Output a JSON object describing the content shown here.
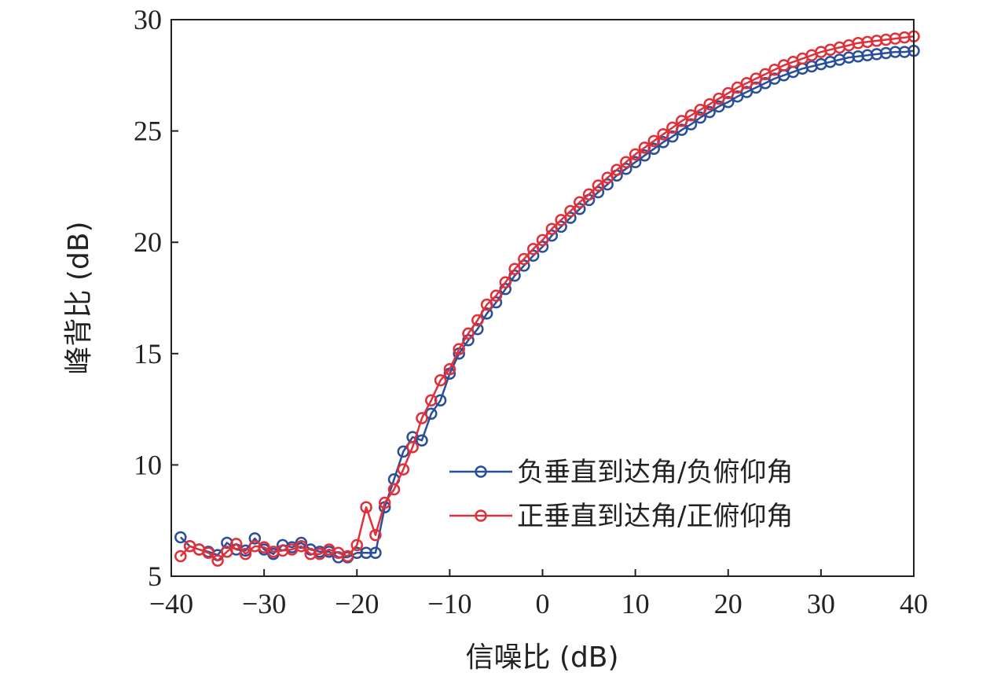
{
  "chart_data": {
    "type": "line",
    "xlabel": "信噪比 (dB)",
    "ylabel": "峰背比 (dB)",
    "xlim": [
      -40,
      40
    ],
    "ylim": [
      5,
      30
    ],
    "xticks": [
      -40,
      -30,
      -20,
      -10,
      0,
      10,
      20,
      30,
      40
    ],
    "yticks": [
      5,
      10,
      15,
      20,
      25,
      30
    ],
    "xtick_labels": [
      "−40",
      "−30",
      "−20",
      "−10",
      "0",
      "10",
      "20",
      "30",
      "40"
    ],
    "ytick_labels": [
      "5",
      "10",
      "15",
      "20",
      "25",
      "30"
    ],
    "grid": false,
    "legend_position": "lower-right",
    "x": [
      -39,
      -38,
      -37,
      -36,
      -35,
      -34,
      -33,
      -32,
      -31,
      -30,
      -29,
      -28,
      -27,
      -26,
      -25,
      -24,
      -23,
      -22,
      -21,
      -20,
      -19,
      -18,
      -17,
      -16,
      -15,
      -14,
      -13,
      -12,
      -11,
      -10,
      -9,
      -8,
      -7,
      -6,
      -5,
      -4,
      -3,
      -2,
      -1,
      0,
      1,
      2,
      3,
      4,
      5,
      6,
      7,
      8,
      9,
      10,
      11,
      12,
      13,
      14,
      15,
      16,
      17,
      18,
      19,
      20,
      21,
      22,
      23,
      24,
      25,
      26,
      27,
      28,
      29,
      30,
      31,
      32,
      33,
      34,
      35,
      36,
      37,
      38,
      39,
      40
    ],
    "series": [
      {
        "name": "负垂直到达角/负俯仰角",
        "color": "#2a4f9a",
        "values": [
          6.75,
          6.35,
          6.2,
          6.1,
          5.95,
          6.5,
          6.2,
          6.15,
          6.7,
          6.2,
          6.0,
          6.4,
          6.3,
          6.5,
          6.2,
          6.1,
          6.1,
          5.85,
          5.85,
          6.05,
          6.05,
          6.05,
          8.1,
          9.35,
          10.6,
          11.25,
          11.1,
          12.3,
          12.9,
          14.1,
          15.0,
          15.6,
          16.1,
          16.8,
          17.3,
          17.9,
          18.5,
          18.95,
          19.4,
          19.8,
          20.3,
          20.7,
          21.1,
          21.5,
          21.9,
          22.25,
          22.6,
          23.0,
          23.3,
          23.6,
          23.9,
          24.2,
          24.5,
          24.75,
          25.05,
          25.3,
          25.6,
          25.85,
          26.1,
          26.3,
          26.55,
          26.75,
          26.95,
          27.15,
          27.35,
          27.5,
          27.65,
          27.8,
          27.9,
          28.0,
          28.1,
          28.2,
          28.3,
          28.35,
          28.4,
          28.45,
          28.5,
          28.55,
          28.55,
          28.6
        ]
      },
      {
        "name": "正垂直到达角/正俯仰角",
        "color": "#e0303a",
        "values": [
          5.9,
          6.35,
          6.2,
          6.05,
          5.7,
          6.1,
          6.45,
          6.0,
          6.35,
          6.3,
          6.1,
          6.15,
          6.2,
          6.35,
          6.0,
          6.0,
          6.2,
          6.05,
          5.9,
          6.4,
          8.1,
          6.85,
          8.3,
          8.9,
          9.8,
          10.8,
          12.1,
          12.9,
          13.8,
          14.3,
          15.2,
          15.9,
          16.5,
          17.2,
          17.6,
          18.2,
          18.8,
          19.25,
          19.7,
          20.1,
          20.6,
          21.0,
          21.4,
          21.8,
          22.15,
          22.55,
          22.9,
          23.25,
          23.6,
          23.95,
          24.25,
          24.55,
          24.85,
          25.15,
          25.45,
          25.7,
          25.95,
          26.2,
          26.45,
          26.7,
          26.95,
          27.15,
          27.35,
          27.55,
          27.75,
          27.95,
          28.1,
          28.25,
          28.4,
          28.55,
          28.65,
          28.75,
          28.85,
          28.95,
          29.0,
          29.05,
          29.1,
          29.15,
          29.2,
          29.25
        ]
      }
    ]
  }
}
